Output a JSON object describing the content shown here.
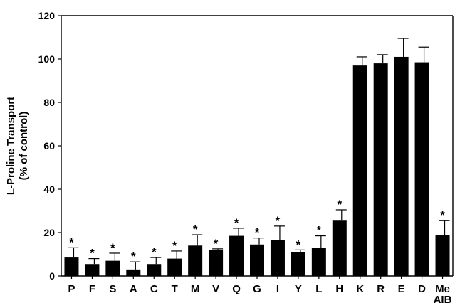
{
  "chart_data": {
    "type": "bar",
    "title": "",
    "xlabel": "",
    "ylabel": [
      "L-Proline Transport",
      "(% of control)"
    ],
    "ylim": [
      0,
      120
    ],
    "yticks": [
      0,
      20,
      40,
      60,
      80,
      100,
      120
    ],
    "grid": false,
    "categories": [
      "P",
      "F",
      "S",
      "A",
      "C",
      "T",
      "M",
      "V",
      "Q",
      "G",
      "I",
      "Y",
      "L",
      "H",
      "K",
      "R",
      "E",
      "D",
      [
        "Me",
        "AIB"
      ]
    ],
    "values": [
      8.5,
      5.5,
      7,
      3,
      5.5,
      8,
      14,
      12,
      18.5,
      14.5,
      16.5,
      11,
      13,
      25.5,
      97,
      98,
      101,
      98.5,
      19
    ],
    "errors": [
      4.5,
      2.5,
      3.5,
      3.5,
      3,
      3.5,
      5,
      0.5,
      3.5,
      3,
      6.5,
      1,
      5.5,
      5,
      4,
      4,
      8.5,
      7,
      6.5
    ],
    "significant": [
      true,
      true,
      true,
      true,
      true,
      true,
      true,
      true,
      true,
      true,
      true,
      true,
      true,
      true,
      false,
      false,
      false,
      false,
      true
    ],
    "marker": "*"
  }
}
